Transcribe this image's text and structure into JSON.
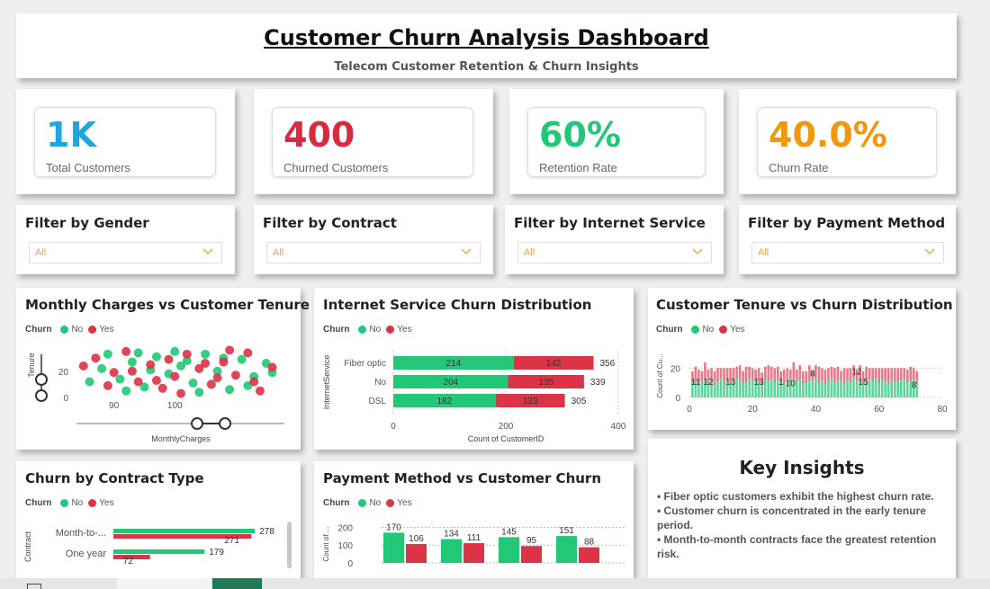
{
  "header": {
    "title": "Customer Churn Analysis Dashboard",
    "subtitle": "Telecom Customer Retention & Churn Insights"
  },
  "kpis": [
    {
      "value": "1K",
      "label": "Total Customers",
      "color": "#1ea6e0"
    },
    {
      "value": "400",
      "label": "Churned Customers",
      "color": "#d92b3f"
    },
    {
      "value": "60%",
      "label": "Retention Rate",
      "color": "#22c878"
    },
    {
      "value": "40.0%",
      "label": "Churn Rate",
      "color": "#f0980c"
    }
  ],
  "filters": [
    {
      "title": "Filter by Gender",
      "value": "All"
    },
    {
      "title": "Filter by Contract",
      "value": "All"
    },
    {
      "title": "Filter by Internet Service",
      "value": "All"
    },
    {
      "title": "Filter by Payment Method",
      "value": "All"
    }
  ],
  "legend": {
    "label": "Churn",
    "no": "No",
    "yes": "Yes"
  },
  "colors": {
    "no": "#22c878",
    "yes": "#dc3347"
  },
  "visuals": {
    "scatter_title": "Monthly Charges vs Customer Tenure",
    "internet_title": "Internet Service Churn Distribution",
    "tenure_title": "Customer Tenure vs Churn Distribution",
    "contract_title": "Churn by Contract Type",
    "payment_title": "Payment Method vs Customer Churn"
  },
  "chart_data": [
    {
      "id": "scatter",
      "type": "scatter",
      "title": "Monthly Charges vs Customer Tenure",
      "xlabel": "MonthlyCharges",
      "ylabel": "Tenure",
      "xlim": [
        84,
        118
      ],
      "ylim": [
        0,
        37
      ],
      "xticks": [
        90,
        100
      ],
      "yticks": [
        0,
        20
      ],
      "series": [
        {
          "name": "No",
          "points": [
            [
              88,
              22
            ],
            [
              91,
              14
            ],
            [
              93,
              27
            ],
            [
              95,
              8
            ],
            [
              97,
              31
            ],
            [
              99,
              18
            ],
            [
              101,
              24
            ],
            [
              103,
              11
            ],
            [
              105,
              33
            ],
            [
              107,
              20
            ],
            [
              109,
              6
            ],
            [
              111,
              29
            ],
            [
              113,
              16
            ],
            [
              115,
              26
            ],
            [
              89,
              33
            ],
            [
              92,
              5
            ],
            [
              96,
              21
            ],
            [
              100,
              35
            ],
            [
              104,
              4
            ],
            [
              108,
              30
            ],
            [
              112,
              9
            ],
            [
              116,
              19
            ],
            [
              86,
              12
            ],
            [
              94,
              34
            ],
            [
              102,
              28
            ]
          ]
        },
        {
          "name": "Yes",
          "points": [
            [
              87,
              30
            ],
            [
              90,
              19
            ],
            [
              92,
              35
            ],
            [
              94,
              12
            ],
            [
              96,
              25
            ],
            [
              98,
              7
            ],
            [
              100,
              16
            ],
            [
              102,
              33
            ],
            [
              104,
              22
            ],
            [
              106,
              10
            ],
            [
              108,
              27
            ],
            [
              110,
              17
            ],
            [
              112,
              34
            ],
            [
              114,
              5
            ],
            [
              116,
              23
            ],
            [
              89,
              9
            ],
            [
              93,
              20
            ],
            [
              97,
              13
            ],
            [
              101,
              3
            ],
            [
              105,
              26
            ],
            [
              109,
              36
            ],
            [
              113,
              12
            ],
            [
              85,
              24
            ],
            [
              99,
              29
            ],
            [
              107,
              15
            ]
          ]
        }
      ]
    },
    {
      "id": "internet",
      "type": "bar",
      "orientation": "horizontal",
      "stacked": true,
      "title": "Internet Service Churn Distribution",
      "xlabel": "Count of CustomerID",
      "ylabel": "InternetService",
      "xlim": [
        0,
        400
      ],
      "xticks": [
        0,
        200,
        400
      ],
      "categories": [
        "Fiber optic",
        "No",
        "DSL"
      ],
      "series": [
        {
          "name": "No",
          "values": [
            214,
            204,
            182
          ]
        },
        {
          "name": "Yes",
          "values": [
            142,
            135,
            123
          ]
        }
      ],
      "totals": [
        356,
        339,
        305
      ]
    },
    {
      "id": "tenure",
      "type": "bar",
      "stacked": true,
      "title": "Customer Tenure vs Churn Distribution",
      "ylabel": "Count of Cu...",
      "xlim": [
        0,
        80
      ],
      "ylim": [
        0,
        27
      ],
      "xticks": [
        0,
        20,
        40,
        60,
        80
      ],
      "yticks": [
        0,
        20
      ],
      "series": [
        {
          "name": "No",
          "values": [
            10,
            12,
            9,
            11,
            13,
            10,
            12,
            8,
            11,
            13,
            9,
            12,
            10,
            11,
            13,
            12,
            9,
            10,
            13,
            11,
            12,
            10,
            9,
            12,
            11,
            13,
            10,
            12,
            11,
            9,
            12,
            10,
            13,
            11,
            12,
            9,
            10,
            12,
            11,
            13,
            10,
            12,
            9,
            11,
            13,
            10,
            12,
            11,
            9,
            12,
            10,
            13,
            11,
            12,
            9,
            10,
            12,
            11,
            13,
            10,
            12,
            11,
            9,
            12,
            10,
            11,
            12,
            13,
            10,
            11,
            12,
            9
          ]
        },
        {
          "name": "Yes",
          "values": [
            8,
            9,
            10,
            7,
            11,
            9,
            8,
            10,
            9,
            7,
            11,
            8,
            10,
            9,
            8,
            10,
            9,
            11,
            8,
            9,
            7,
            10,
            8,
            9,
            11,
            8,
            10,
            9,
            7,
            10,
            8,
            9,
            11,
            8,
            10,
            9,
            8,
            10,
            7,
            9,
            11,
            8,
            10,
            9,
            8,
            10,
            9,
            7,
            11,
            8,
            10,
            9,
            8,
            10,
            9,
            11,
            8,
            9,
            7,
            10,
            8,
            9,
            11,
            8,
            10,
            9,
            8,
            7,
            9,
            10,
            8,
            9
          ]
        }
      ],
      "annotations": [
        "11",
        "12",
        "13",
        "13",
        "1",
        "10",
        "8",
        "12",
        "15",
        "8"
      ]
    },
    {
      "id": "contract",
      "type": "bar",
      "orientation": "horizontal",
      "title": "Churn by Contract Type",
      "ylabel": "Contract",
      "xlim": [
        0,
        290
      ],
      "categories": [
        "Month-to-...",
        "One year"
      ],
      "series": [
        {
          "name": "No",
          "values": [
            278,
            179
          ]
        },
        {
          "name": "Yes",
          "values": [
            271,
            72
          ]
        }
      ]
    },
    {
      "id": "payment",
      "type": "bar",
      "title": "Payment Method vs Customer Churn",
      "ylabel": "Count of ...",
      "ylim": [
        0,
        250
      ],
      "yticks": [
        0,
        100,
        200
      ],
      "categories": [
        "",
        "",
        "",
        ""
      ],
      "series": [
        {
          "name": "No",
          "values": [
            170,
            134,
            145,
            151
          ]
        },
        {
          "name": "Yes",
          "values": [
            106,
            111,
            95,
            88
          ]
        }
      ]
    }
  ],
  "insights": {
    "title": "Key Insights",
    "items": [
      "• Fiber optic customers exhibit the highest churn rate.",
      "• Customer churn is concentrated in the early tenure period.",
      "• Month-to-month contracts face the greatest retention risk."
    ]
  }
}
